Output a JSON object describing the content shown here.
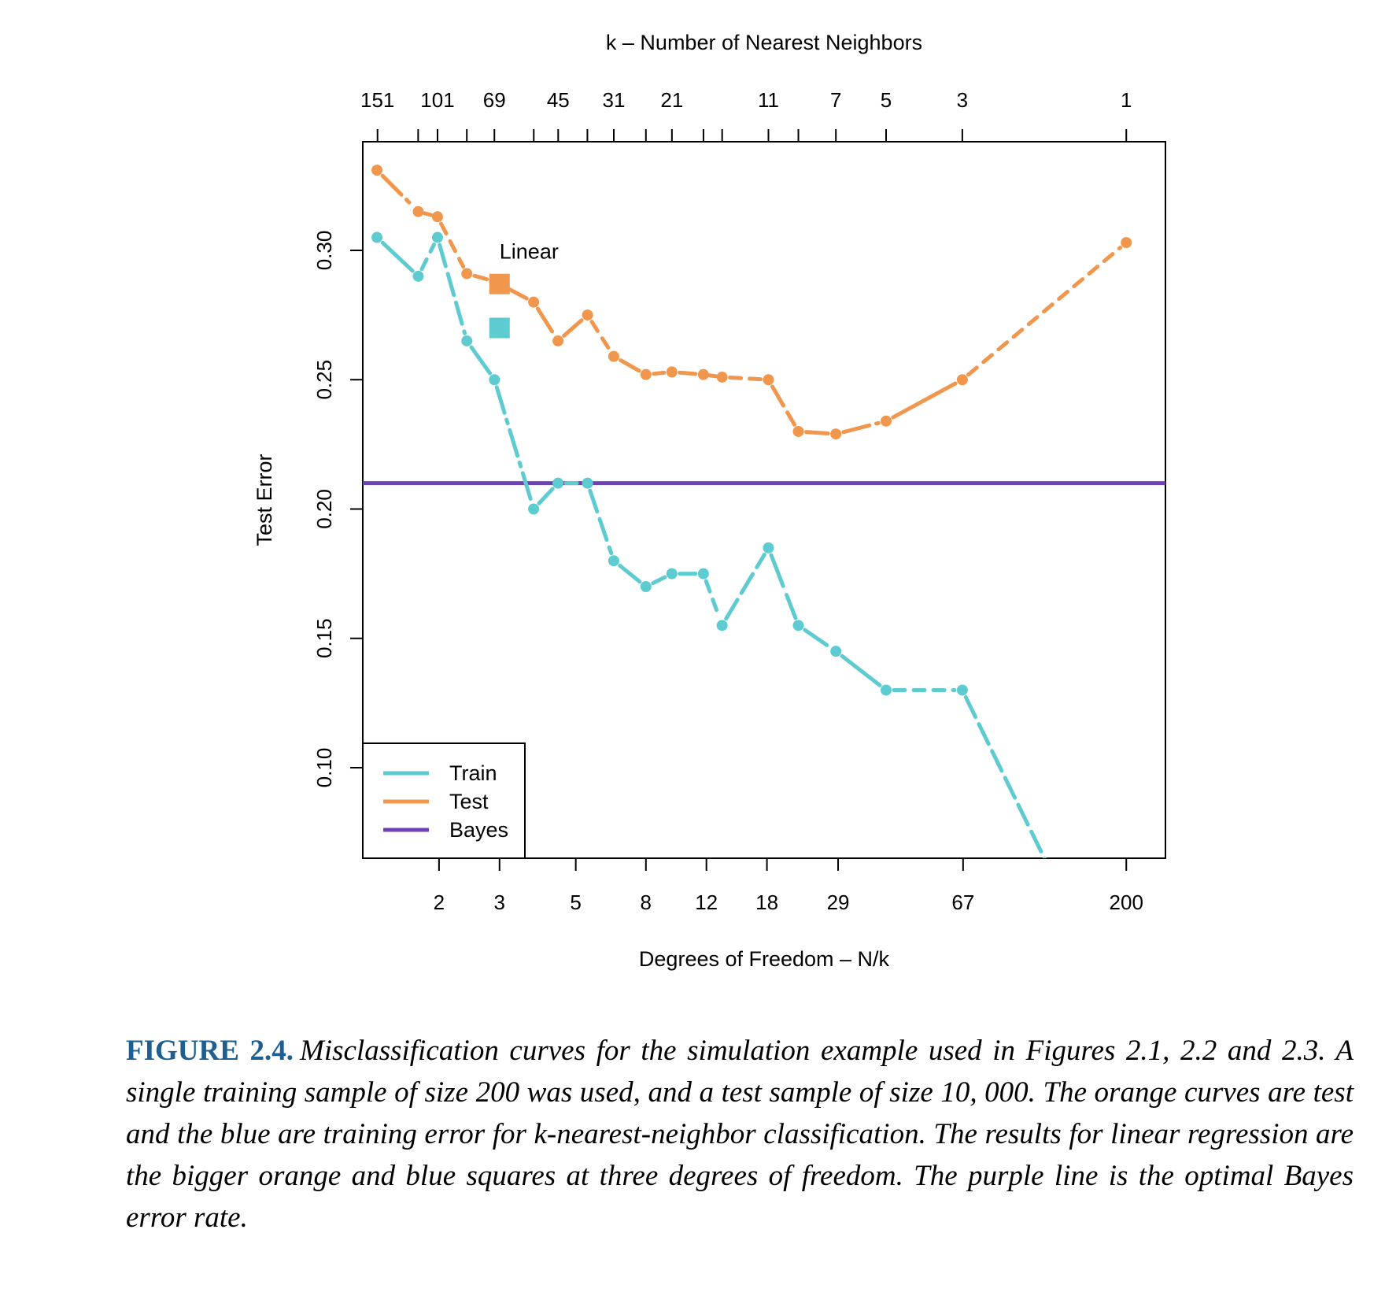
{
  "chart_data": {
    "type": "line",
    "title": "",
    "xlabel": "Degrees of Freedom – N/k",
    "ylabel": "Test Error",
    "x_scale": "log",
    "xlim": [
      1.2,
      260
    ],
    "ylim": [
      0.065,
      0.342
    ],
    "x_ticks": [
      {
        "value": 2,
        "label": "2"
      },
      {
        "value": 3,
        "label": "3"
      },
      {
        "value": 5,
        "label": "5"
      },
      {
        "value": 8,
        "label": "8"
      },
      {
        "value": 12,
        "label": "12"
      },
      {
        "value": 18,
        "label": "18"
      },
      {
        "value": 29,
        "label": "29"
      },
      {
        "value": 67,
        "label": "67"
      },
      {
        "value": 200,
        "label": "200"
      }
    ],
    "y_ticks": [
      {
        "value": 0.1,
        "label": "0.10"
      },
      {
        "value": 0.15,
        "label": "0.15"
      },
      {
        "value": 0.2,
        "label": "0.20"
      },
      {
        "value": 0.25,
        "label": "0.25"
      },
      {
        "value": 0.3,
        "label": "0.30"
      }
    ],
    "top_axis": {
      "label": "k –  Number of Nearest Neighbors",
      "ticks": [
        {
          "k": 151,
          "label": "151"
        },
        {
          "k": 115,
          "label": ""
        },
        {
          "k": 101,
          "label": "101"
        },
        {
          "k": 83,
          "label": ""
        },
        {
          "k": 69,
          "label": "69"
        },
        {
          "k": 53,
          "label": ""
        },
        {
          "k": 45,
          "label": "45"
        },
        {
          "k": 37,
          "label": ""
        },
        {
          "k": 31,
          "label": "31"
        },
        {
          "k": 25,
          "label": ""
        },
        {
          "k": 21,
          "label": "21"
        },
        {
          "k": 17,
          "label": ""
        },
        {
          "k": 15,
          "label": ""
        },
        {
          "k": 11,
          "label": "11"
        },
        {
          "k": 9,
          "label": ""
        },
        {
          "k": 7,
          "label": "7"
        },
        {
          "k": 5,
          "label": "5"
        },
        {
          "k": 3,
          "label": "3"
        },
        {
          "k": 1,
          "label": "1"
        }
      ]
    },
    "series": [
      {
        "name": "Train",
        "color": "#5ecbd0",
        "k": [
          151,
          115,
          101,
          83,
          69,
          53,
          45,
          37,
          31,
          25,
          21,
          17,
          15,
          11,
          9,
          7,
          5,
          3,
          1
        ],
        "x": [
          1.32,
          1.74,
          1.98,
          2.41,
          2.9,
          3.77,
          4.44,
          5.41,
          6.45,
          8.0,
          9.52,
          11.76,
          13.33,
          18.18,
          22.22,
          28.57,
          40.0,
          66.67,
          200.0
        ],
        "values": [
          0.305,
          0.29,
          0.305,
          0.265,
          0.25,
          0.2,
          0.21,
          0.21,
          0.18,
          0.17,
          0.175,
          0.175,
          0.155,
          0.185,
          0.155,
          0.145,
          0.13,
          0.13,
          0.0
        ]
      },
      {
        "name": "Test",
        "color": "#f0964d",
        "k": [
          151,
          115,
          101,
          83,
          69,
          53,
          45,
          37,
          31,
          25,
          21,
          17,
          15,
          11,
          9,
          7,
          5,
          3,
          1
        ],
        "x": [
          1.32,
          1.74,
          1.98,
          2.41,
          2.9,
          3.77,
          4.44,
          5.41,
          6.45,
          8.0,
          9.52,
          11.76,
          13.33,
          18.18,
          22.22,
          28.57,
          40.0,
          66.67,
          200.0
        ],
        "values": [
          0.331,
          0.315,
          0.313,
          0.291,
          0.288,
          0.28,
          0.265,
          0.275,
          0.259,
          0.252,
          0.253,
          0.252,
          0.251,
          0.25,
          0.23,
          0.229,
          0.234,
          0.25,
          0.303
        ]
      },
      {
        "name": "Bayes",
        "color": "#7040b8",
        "type": "hline",
        "value": 0.21
      }
    ],
    "linear_points": {
      "label": "Linear",
      "x": 3,
      "test": {
        "value": 0.287,
        "color": "#f0964d"
      },
      "train": {
        "value": 0.27,
        "color": "#5ecbd0"
      }
    },
    "legend": {
      "position": "bottom-left",
      "entries": [
        {
          "label": "Train",
          "color": "#5ecbd0"
        },
        {
          "label": "Test",
          "color": "#f0964d"
        },
        {
          "label": "Bayes",
          "color": "#7040b8"
        }
      ]
    },
    "grid": false
  },
  "caption": {
    "label": "FIGURE 2.4.",
    "text": "Misclassification curves for the simulation example used in Figures 2.1, 2.2 and 2.3. A single training sample of size 200 was used, and a test sample of size 10, 000. The orange curves are test and the blue are training error for k-nearest-neighbor classification. The results for linear regression are the bigger orange and blue squares at three degrees of freedom. The purple line is the optimal Bayes error rate."
  }
}
